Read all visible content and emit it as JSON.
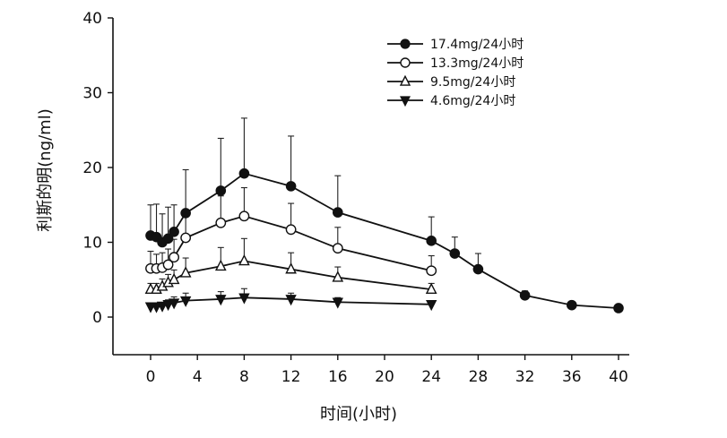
{
  "chart_data": {
    "type": "line",
    "title": "",
    "xlabel": "时间(小时)",
    "ylabel": "利斯的明(ng/ml)",
    "xlim": [
      -3,
      40
    ],
    "ylim": [
      -5,
      40
    ],
    "xticks": [
      0,
      4,
      8,
      12,
      16,
      20,
      24,
      28,
      32,
      36,
      40
    ],
    "xtick_labels": [
      "0",
      "4",
      "8",
      "12",
      "16",
      "20",
      "24",
      "28",
      "32",
      "36",
      "40"
    ],
    "yticks": [
      0,
      10,
      20,
      30,
      40
    ],
    "ytick_labels": [
      "0",
      "10",
      "20",
      "30",
      "40"
    ],
    "grid": false,
    "legend_position": "top-right",
    "series": [
      {
        "name": "17.4mg/24小时",
        "marker": "filled-circle",
        "x": [
          0,
          0.5,
          1,
          1.5,
          2,
          3,
          6,
          8,
          12,
          16,
          24,
          26,
          28,
          32,
          36,
          40
        ],
        "y": [
          10.9,
          10.7,
          10.0,
          10.5,
          11.4,
          13.9,
          16.9,
          19.2,
          17.5,
          14.0,
          10.2,
          8.5,
          6.4,
          2.9,
          1.6,
          1.2
        ],
        "error": [
          4.1,
          4.4,
          3.8,
          4.2,
          3.6,
          5.8,
          7.0,
          7.4,
          6.7,
          4.9,
          3.2,
          2.2,
          2.1,
          0.6,
          0.3,
          0.2
        ]
      },
      {
        "name": "13.3mg/24小时",
        "marker": "open-circle",
        "x": [
          0,
          0.5,
          1,
          1.5,
          2,
          3,
          6,
          8,
          12,
          16,
          24
        ],
        "y": [
          6.5,
          6.5,
          6.6,
          7.0,
          8.0,
          10.6,
          12.6,
          13.5,
          11.7,
          9.2,
          6.2
        ],
        "error": [
          2.3,
          1.9,
          2.0,
          2.1,
          2.4,
          3.1,
          3.6,
          3.8,
          3.5,
          2.8,
          2.0
        ]
      },
      {
        "name": "9.5mg/24小时",
        "marker": "open-triangle",
        "x": [
          0,
          0.5,
          1,
          1.5,
          2,
          3,
          6,
          8,
          12,
          16,
          24
        ],
        "y": [
          3.7,
          3.7,
          4.1,
          4.6,
          5.0,
          5.9,
          6.8,
          7.5,
          6.4,
          5.3,
          3.7
        ],
        "error": [
          0.8,
          0.8,
          1.0,
          1.1,
          1.3,
          2.0,
          2.5,
          3.0,
          2.2,
          1.4,
          0.8
        ]
      },
      {
        "name": "4.6mg/24小时",
        "marker": "filled-triangle-down",
        "x": [
          0,
          0.5,
          1,
          1.5,
          2,
          3,
          6,
          8,
          12,
          16,
          24
        ],
        "y": [
          1.4,
          1.4,
          1.5,
          1.7,
          1.9,
          2.2,
          2.4,
          2.6,
          2.4,
          2.0,
          1.7
        ],
        "error": [
          0.3,
          0.3,
          0.4,
          0.6,
          0.8,
          1.0,
          1.0,
          1.2,
          0.8,
          0.6,
          0.3
        ]
      }
    ]
  }
}
